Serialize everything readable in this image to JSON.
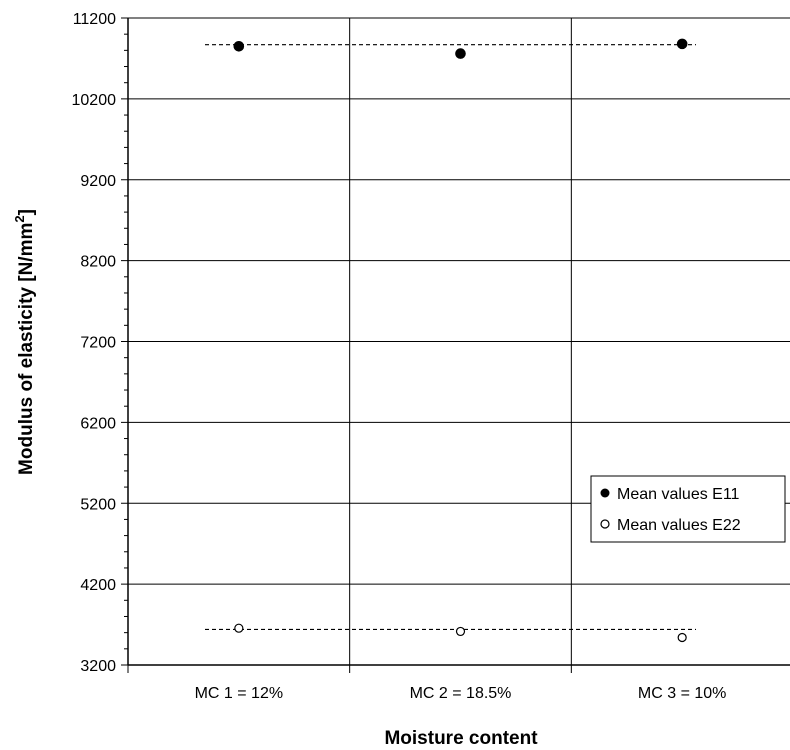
{
  "chart_data": {
    "type": "scatter",
    "title": "",
    "xlabel": "Moisture content",
    "ylabel_main": "Modulus of elasticity [N/mm",
    "ylabel_sup": "2",
    "ylabel_end": "]",
    "categories": [
      "MC 1 = 12%",
      "MC 2 = 18.5%",
      "MC 3 = 10%"
    ],
    "ylim": [
      3200,
      11200
    ],
    "yticks": [
      3200,
      4200,
      5200,
      6200,
      7200,
      8200,
      9200,
      10200,
      11200
    ],
    "ytick_labels": [
      "3200",
      "4200",
      "5200",
      "6200",
      "7200",
      "8200",
      "9200",
      "10200",
      "11200"
    ],
    "grid": "horizontal and vertical",
    "legend_position": "right",
    "series": [
      {
        "name": "Mean values E11",
        "marker": "filled-circle",
        "color": "#000000",
        "values": [
          10850,
          10760,
          10880
        ],
        "mean_line": 10870
      },
      {
        "name": "Mean values E22",
        "marker": "open-circle",
        "color": "#000000",
        "values": [
          3655,
          3615,
          3540
        ],
        "mean_line": 3640
      }
    ]
  }
}
